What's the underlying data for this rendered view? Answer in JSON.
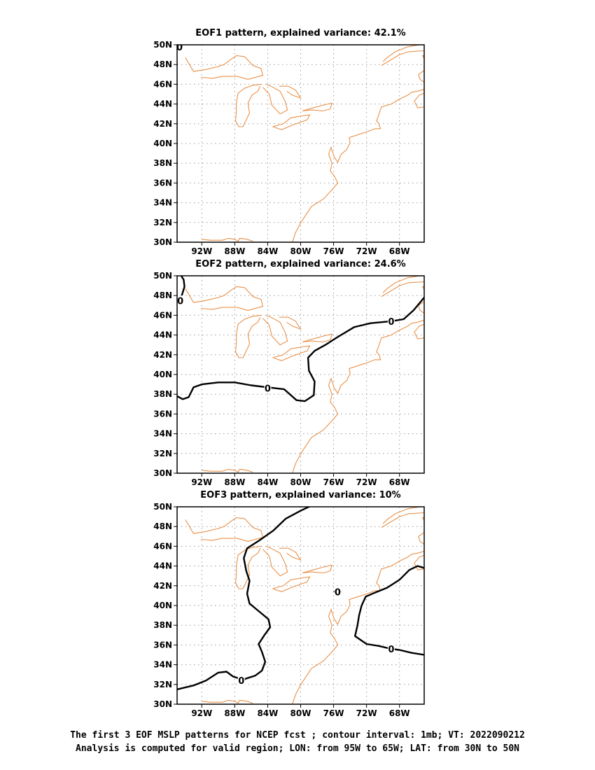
{
  "panels": [
    {
      "id": "eof1",
      "title": "EOF1 pattern, explained variance: 42.1%",
      "zero_label": "0",
      "contours": [
        {
          "level": 0,
          "points": [
            [
              -94.85,
              49.85
            ],
            [
              -94.6,
              49.7
            ],
            [
              -94.5,
              50.0
            ]
          ]
        }
      ],
      "zero_labels_at": [
        [
          -94.7,
          49.8
        ]
      ]
    },
    {
      "id": "eof2",
      "title": "EOF2 pattern, explained variance: 24.6%",
      "zero_label": "0",
      "contours": [
        {
          "level": 0,
          "points": [
            [
              -94.5,
              50.0
            ],
            [
              -94.2,
              49.6
            ],
            [
              -94.1,
              48.9
            ],
            [
              -94.4,
              48.1
            ],
            [
              -94.6,
              47.6
            ]
          ]
        },
        {
          "level": 0,
          "points": [
            [
              -95.0,
              37.8
            ],
            [
              -94.3,
              37.5
            ],
            [
              -93.6,
              37.7
            ],
            [
              -93.0,
              38.7
            ],
            [
              -92.0,
              39.0
            ],
            [
              -90.0,
              39.2
            ],
            [
              -88.0,
              39.2
            ],
            [
              -86.0,
              38.9
            ],
            [
              -84.0,
              38.7
            ],
            [
              -82.0,
              38.5
            ],
            [
              -80.5,
              37.4
            ],
            [
              -79.5,
              37.3
            ],
            [
              -78.4,
              37.9
            ],
            [
              -78.3,
              39.3
            ],
            [
              -79.0,
              40.4
            ],
            [
              -79.1,
              41.7
            ],
            [
              -78.3,
              42.4
            ],
            [
              -77.0,
              43.0
            ],
            [
              -75.5,
              43.8
            ],
            [
              -73.5,
              44.8
            ],
            [
              -71.5,
              45.2
            ],
            [
              -69.0,
              45.4
            ],
            [
              -67.5,
              45.6
            ],
            [
              -66.3,
              46.5
            ],
            [
              -65.0,
              47.8
            ]
          ]
        }
      ],
      "zero_labels_at": [
        [
          -94.6,
          47.5
        ],
        [
          -84.0,
          38.6
        ],
        [
          -69.0,
          45.4
        ]
      ]
    },
    {
      "id": "eof3",
      "title": "EOF3 pattern, explained variance: 10%",
      "zero_label": "0",
      "contours": [
        {
          "level": 0,
          "points": [
            [
              -95.0,
              31.5
            ],
            [
              -93.0,
              31.9
            ],
            [
              -91.5,
              32.4
            ],
            [
              -90.0,
              33.2
            ],
            [
              -89.0,
              33.3
            ],
            [
              -88.2,
              32.8
            ],
            [
              -87.0,
              32.5
            ],
            [
              -85.5,
              32.9
            ],
            [
              -84.7,
              33.4
            ],
            [
              -84.3,
              34.3
            ],
            [
              -84.7,
              35.3
            ],
            [
              -85.1,
              36.1
            ],
            [
              -84.4,
              37.0
            ],
            [
              -83.7,
              37.8
            ],
            [
              -83.9,
              38.6
            ],
            [
              -85.2,
              39.5
            ],
            [
              -86.2,
              40.2
            ],
            [
              -86.5,
              41.2
            ],
            [
              -86.2,
              42.5
            ],
            [
              -86.6,
              43.5
            ],
            [
              -86.9,
              44.8
            ],
            [
              -86.5,
              45.8
            ],
            [
              -85.0,
              46.6
            ],
            [
              -83.3,
              47.6
            ],
            [
              -81.8,
              48.8
            ],
            [
              -80.0,
              49.6
            ],
            [
              -79.0,
              50.0
            ]
          ]
        },
        {
          "level": 0,
          "points": [
            [
              -65.0,
              35.0
            ],
            [
              -66.5,
              35.2
            ],
            [
              -68.0,
              35.5
            ],
            [
              -69.0,
              35.6
            ],
            [
              -70.5,
              35.9
            ],
            [
              -72.0,
              36.1
            ],
            [
              -73.4,
              36.9
            ],
            [
              -73.1,
              38.0
            ],
            [
              -72.9,
              39.0
            ],
            [
              -72.6,
              40.0
            ],
            [
              -72.1,
              40.9
            ],
            [
              -71.0,
              41.3
            ],
            [
              -69.5,
              41.8
            ],
            [
              -68.0,
              42.6
            ],
            [
              -66.8,
              43.6
            ],
            [
              -65.8,
              44.0
            ],
            [
              -65.0,
              43.8
            ]
          ]
        },
        {
          "level": 0,
          "points": [
            [
              -75.9,
              41.4
            ],
            [
              -75.5,
              41.6
            ],
            [
              -75.15,
              41.4
            ],
            [
              -75.5,
              41.15
            ],
            [
              -75.9,
              41.4
            ]
          ]
        }
      ],
      "zero_labels_at": [
        [
          -87.2,
          32.4
        ],
        [
          -69.0,
          35.6
        ],
        [
          -75.5,
          41.4
        ]
      ]
    }
  ],
  "axes": {
    "lon_range": [
      -95,
      -65
    ],
    "lat_range": [
      30,
      50
    ],
    "lon_ticks": [
      -92,
      -88,
      -84,
      -80,
      -76,
      -72,
      -68
    ],
    "lon_tick_labels": [
      "92W",
      "88W",
      "84W",
      "80W",
      "76W",
      "72W",
      "68W"
    ],
    "lat_ticks": [
      30,
      32,
      34,
      36,
      38,
      40,
      42,
      44,
      46,
      48,
      50
    ],
    "lat_tick_labels": [
      "30N",
      "32N",
      "34N",
      "36N",
      "38N",
      "40N",
      "42N",
      "44N",
      "46N",
      "48N",
      "50N"
    ],
    "grid": "dotted"
  },
  "colors": {
    "coastline": "#e8914a",
    "contour": "#000000",
    "grid": "#9a9a9a",
    "frame": "#000000"
  },
  "coastlines": [
    [
      [
        -94.0,
        48.7
      ],
      [
        -93.0,
        47.3
      ],
      [
        -91.5,
        47.5
      ],
      [
        -90.0,
        47.8
      ],
      [
        -89.3,
        48.0
      ],
      [
        -88.5,
        48.5
      ],
      [
        -87.8,
        48.9
      ],
      [
        -86.8,
        48.8
      ],
      [
        -85.8,
        47.9
      ],
      [
        -84.8,
        47.6
      ],
      [
        -84.6,
        46.9
      ],
      [
        -86.4,
        46.5
      ],
      [
        -87.7,
        46.8
      ],
      [
        -89.5,
        46.8
      ],
      [
        -90.7,
        46.6
      ],
      [
        -92.1,
        46.7
      ]
    ],
    [
      [
        -84.8,
        46.0
      ],
      [
        -85.8,
        45.9
      ],
      [
        -86.8,
        45.6
      ],
      [
        -87.6,
        45.1
      ],
      [
        -87.8,
        44.1
      ],
      [
        -87.8,
        43.2
      ],
      [
        -87.9,
        42.3
      ],
      [
        -87.5,
        41.7
      ],
      [
        -87.0,
        41.7
      ],
      [
        -86.6,
        42.4
      ],
      [
        -86.2,
        43.1
      ],
      [
        -86.4,
        44.1
      ],
      [
        -85.9,
        44.9
      ],
      [
        -85.2,
        45.3
      ],
      [
        -84.9,
        45.8
      ]
    ],
    [
      [
        -84.2,
        46.0
      ],
      [
        -83.6,
        45.8
      ],
      [
        -82.5,
        45.3
      ],
      [
        -81.9,
        44.3
      ],
      [
        -81.6,
        43.4
      ],
      [
        -82.5,
        43.0
      ],
      [
        -83.5,
        43.9
      ],
      [
        -83.8,
        45.0
      ],
      [
        -84.6,
        45.7
      ]
    ],
    [
      [
        -82.6,
        45.8
      ],
      [
        -81.5,
        45.8
      ],
      [
        -80.6,
        45.4
      ],
      [
        -80.0,
        44.6
      ],
      [
        -81.0,
        44.9
      ],
      [
        -81.7,
        45.3
      ]
    ],
    [
      [
        -83.4,
        41.7
      ],
      [
        -82.1,
        42.0
      ],
      [
        -81.2,
        42.6
      ],
      [
        -79.8,
        42.8
      ],
      [
        -78.9,
        42.9
      ],
      [
        -79.2,
        42.4
      ],
      [
        -80.2,
        42.1
      ],
      [
        -81.2,
        41.8
      ],
      [
        -82.3,
        41.4
      ],
      [
        -83.4,
        41.7
      ]
    ],
    [
      [
        -79.8,
        43.3
      ],
      [
        -78.5,
        43.6
      ],
      [
        -77.2,
        43.9
      ],
      [
        -76.2,
        44.1
      ],
      [
        -76.4,
        43.5
      ],
      [
        -77.3,
        43.3
      ],
      [
        -78.7,
        43.4
      ],
      [
        -79.8,
        43.3
      ]
    ],
    [
      [
        -81.0,
        30.0
      ],
      [
        -80.6,
        31.0
      ],
      [
        -79.9,
        32.1
      ],
      [
        -78.7,
        33.6
      ],
      [
        -77.2,
        34.4
      ],
      [
        -76.1,
        35.4
      ],
      [
        -75.5,
        36.0
      ],
      [
        -75.9,
        36.7
      ],
      [
        -76.4,
        37.2
      ],
      [
        -76.2,
        38.0
      ],
      [
        -76.6,
        38.9
      ],
      [
        -76.3,
        39.6
      ],
      [
        -75.9,
        38.6
      ],
      [
        -75.5,
        38.1
      ],
      [
        -75.1,
        38.9
      ],
      [
        -74.4,
        39.4
      ],
      [
        -74.0,
        40.1
      ],
      [
        -74.1,
        40.6
      ],
      [
        -73.0,
        40.9
      ],
      [
        -71.9,
        41.2
      ],
      [
        -71.0,
        41.5
      ],
      [
        -70.3,
        41.5
      ],
      [
        -70.5,
        42.0
      ],
      [
        -70.8,
        42.3
      ],
      [
        -70.6,
        42.7
      ],
      [
        -70.2,
        43.7
      ],
      [
        -69.0,
        44.0
      ],
      [
        -68.0,
        44.5
      ],
      [
        -67.0,
        44.9
      ],
      [
        -66.5,
        45.2
      ],
      [
        -65.8,
        45.3
      ],
      [
        -65.0,
        45.5
      ]
    ],
    [
      [
        -65.0,
        43.7
      ],
      [
        -65.8,
        43.6
      ],
      [
        -66.2,
        44.3
      ],
      [
        -65.6,
        44.9
      ],
      [
        -65.0,
        45.1
      ]
    ],
    [
      [
        -70.2,
        47.9
      ],
      [
        -69.2,
        48.4
      ],
      [
        -68.0,
        49.0
      ],
      [
        -66.9,
        49.3
      ],
      [
        -65.0,
        49.4
      ]
    ],
    [
      [
        -70.0,
        48.3
      ],
      [
        -69.5,
        48.7
      ],
      [
        -68.5,
        49.3
      ],
      [
        -67.0,
        49.8
      ],
      [
        -65.5,
        50.0
      ]
    ],
    [
      [
        -65.0,
        48.6
      ],
      [
        -64.9,
        48.9
      ],
      [
        -65.2,
        48.9
      ],
      [
        -65.0,
        48.6
      ]
    ],
    [
      [
        -65.0,
        47.4
      ],
      [
        -65.7,
        47.0
      ],
      [
        -65.5,
        46.5
      ],
      [
        -65.0,
        46.2
      ]
    ],
    [
      [
        -92.0,
        30.3
      ],
      [
        -91.0,
        30.2
      ],
      [
        -89.5,
        30.2
      ],
      [
        -88.8,
        30.4
      ],
      [
        -88.0,
        30.3
      ],
      [
        -87.6,
        30.1
      ],
      [
        -87.4,
        30.4
      ],
      [
        -86.5,
        30.3
      ],
      [
        -85.8,
        30.1
      ]
    ]
  ],
  "caption": {
    "line1": "The first 3 EOF MSLP patterns for NCEP fcst ; contour interval: 1mb; VT: 2022090212",
    "line2": "Analysis is computed for valid region; LON: from 95W to 65W; LAT: from 30N to 50N"
  }
}
